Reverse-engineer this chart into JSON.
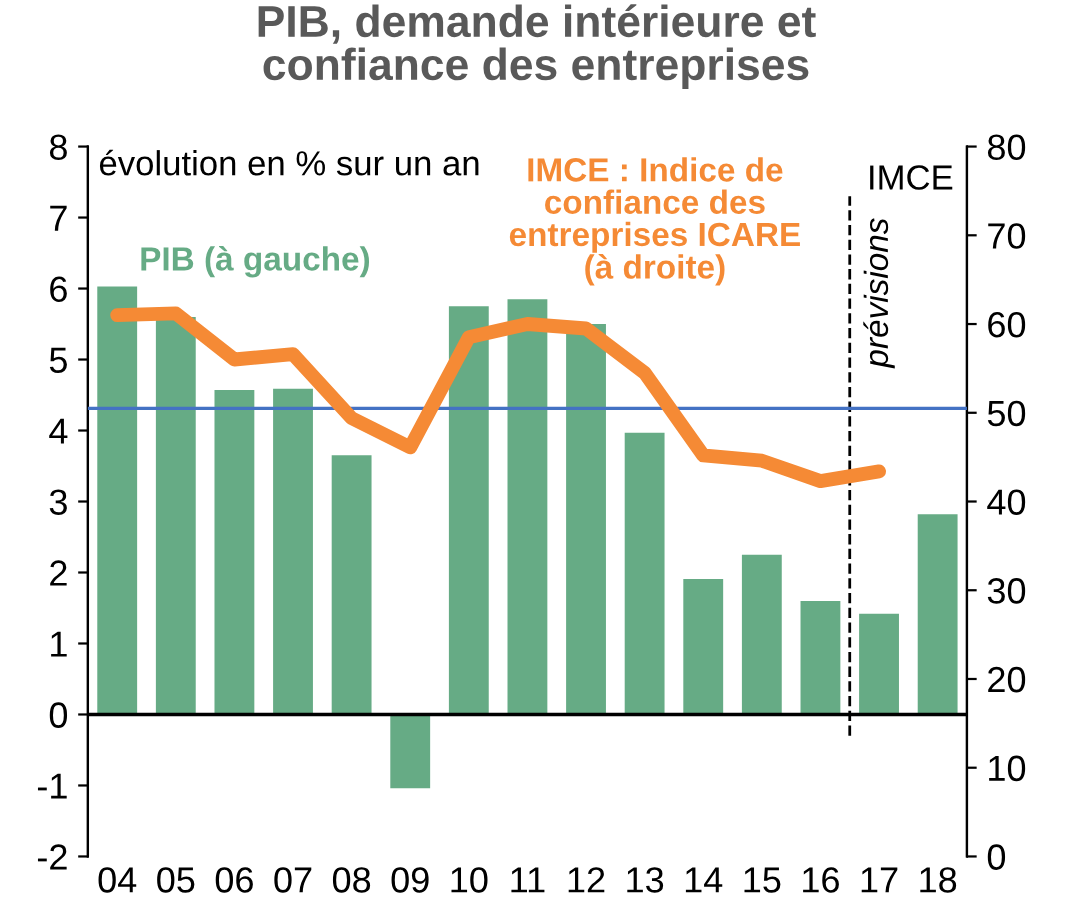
{
  "chart_data": {
    "type": "bar",
    "title": "PIB, demande intérieure et\nconfiance des entreprises",
    "categories": [
      "04",
      "05",
      "06",
      "07",
      "08",
      "09",
      "10",
      "11",
      "12",
      "13",
      "14",
      "15",
      "16",
      "17",
      "18"
    ],
    "series": [
      {
        "name": "PIB (à gauche)",
        "color": "#66ab85",
        "values": [
          6.03,
          5.6,
          4.57,
          4.59,
          3.65,
          -1.04,
          5.75,
          5.85,
          5.5,
          3.97,
          1.91,
          2.25,
          1.6,
          1.42,
          2.82
        ]
      },
      {
        "name": "IMCE : Indice de confiance des entreprises ICARE (à droite)",
        "type": "line",
        "axis": "y2",
        "color": "#f58a35",
        "values": [
          61.0,
          61.2,
          56.0,
          56.6,
          49.4,
          46.1,
          58.5,
          60.0,
          59.5,
          54.5,
          45.2,
          44.6,
          42.3,
          43.4,
          null
        ]
      }
    ],
    "ylabel": "évolution en % sur un an",
    "y2label": "IMCE",
    "ylim": [
      -2,
      8
    ],
    "yticks": [
      -2,
      -1,
      0,
      1,
      2,
      3,
      4,
      5,
      6,
      7,
      8
    ],
    "y2lim": [
      0,
      80
    ],
    "y2ticks": [
      0,
      10,
      20,
      30,
      40,
      50,
      60,
      70,
      80
    ],
    "ref_lines": [
      {
        "axis": "y2",
        "value": 50.5,
        "color": "#4472c4",
        "line_style": "solid"
      }
    ],
    "annotations": [
      "prévisions"
    ],
    "legend": false,
    "grid": false
  }
}
